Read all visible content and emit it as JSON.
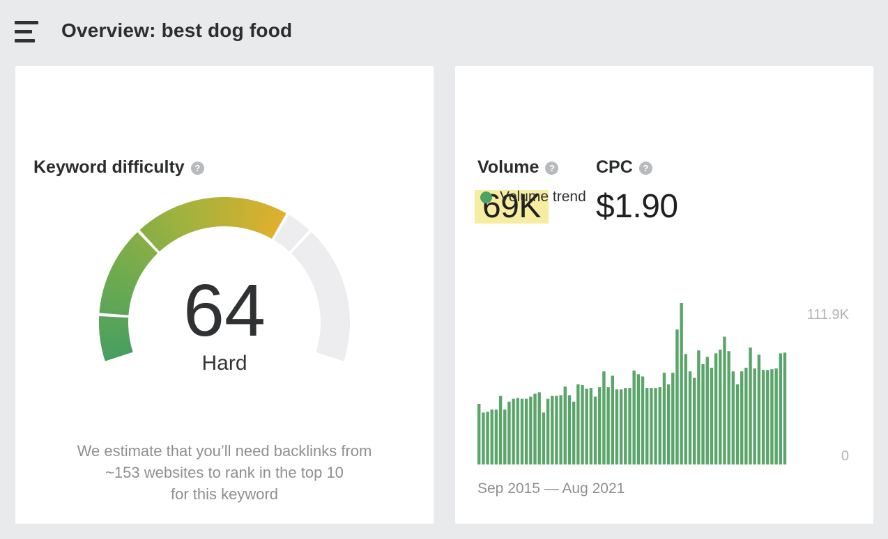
{
  "header": {
    "title": "Overview: best dog food"
  },
  "icons": {
    "help_glyph": "?"
  },
  "kd_card": {
    "title": "Keyword difficulty",
    "score": "64",
    "score_label": "Hard",
    "description_lines": [
      "We estimate that you’ll need backlinks from",
      "~153 websites to rank in the top 10",
      "for this keyword"
    ]
  },
  "metrics_card": {
    "volume_label": "Volume",
    "volume_value": "69K",
    "volume_highlight_color": "#f7eda1",
    "cpc_label": "CPC",
    "cpc_value": "$1.90",
    "legend_label": "Volume trend",
    "legend_color": "#4aa264",
    "y_axis_max_label": "111.9K",
    "y_axis_min_label": "0",
    "x_range_label": "Sep 2015 — Aug 2021"
  },
  "chart_data": [
    {
      "type": "gauge",
      "title": "Keyword difficulty",
      "value": 64,
      "min": 0,
      "max": 100,
      "label": "Hard",
      "segment_boundaries": [
        10,
        30,
        70
      ],
      "sweep_degrees": 216,
      "fill_gradient": [
        "#489e60",
        "#6aaa50",
        "#a0b23e",
        "#e0b02d"
      ],
      "track_color": "#ededef"
    },
    {
      "type": "bar",
      "title": "Volume trend",
      "x_start": "Sep 2015",
      "x_end": "Aug 2021",
      "x_interval": "monthly",
      "unit": "K",
      "ylim": [
        0,
        111.9
      ],
      "y_tick_labels": [
        "0",
        "111.9K"
      ],
      "grid": false,
      "legend": [
        "Volume trend"
      ],
      "legend_position": "top-left",
      "bar_color": "#5ba56a",
      "values": [
        42,
        36,
        36.5,
        38,
        38,
        47.5,
        38,
        43.5,
        45.5,
        46,
        45.5,
        45.5,
        47,
        49,
        50,
        36,
        45.5,
        47.5,
        47.5,
        48,
        54,
        48,
        43.5,
        55.5,
        55,
        52.5,
        53,
        47,
        53.5,
        64.5,
        53.5,
        61.5,
        52,
        52,
        53,
        53,
        65,
        62.5,
        61,
        53,
        53,
        53,
        53.5,
        63.5,
        55.5,
        63.5,
        93.5,
        111.9,
        76.5,
        64.5,
        60,
        79,
        69.5,
        74.5,
        67,
        77,
        79.5,
        88.5,
        78.5,
        64.5,
        55.5,
        64.5,
        67,
        81,
        66.5,
        76,
        65.5,
        65.5,
        66,
        66.5,
        77,
        77.5
      ]
    }
  ]
}
